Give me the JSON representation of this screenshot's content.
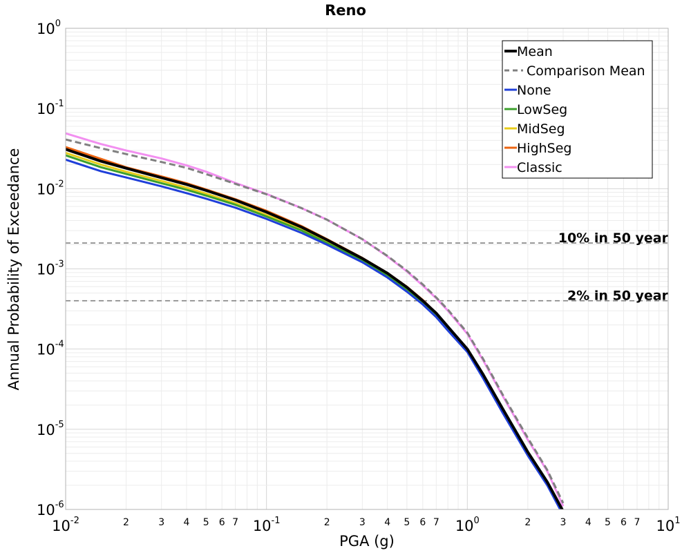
{
  "chart_data": {
    "type": "line",
    "title": "Reno",
    "xlabel": "PGA (g)",
    "ylabel": "Annual Probability of Exceedance",
    "xscale": "log",
    "yscale": "log",
    "xlim": [
      0.01,
      10
    ],
    "ylim": [
      1e-06,
      1
    ],
    "grid": true,
    "legend_position": "top-right",
    "x_major_ticks": [
      {
        "value": 0.01,
        "base": "10",
        "exp": "-2"
      },
      {
        "value": 0.1,
        "base": "10",
        "exp": "-1"
      },
      {
        "value": 1,
        "base": "10",
        "exp": "0"
      },
      {
        "value": 10,
        "base": "10",
        "exp": "1"
      }
    ],
    "x_minor_ticks": [
      {
        "value": 0.02,
        "label": "2"
      },
      {
        "value": 0.03,
        "label": "3"
      },
      {
        "value": 0.04,
        "label": "4"
      },
      {
        "value": 0.05,
        "label": "5"
      },
      {
        "value": 0.06,
        "label": "6"
      },
      {
        "value": 0.07,
        "label": "7"
      },
      {
        "value": 0.2,
        "label": "2"
      },
      {
        "value": 0.3,
        "label": "3"
      },
      {
        "value": 0.4,
        "label": "4"
      },
      {
        "value": 0.5,
        "label": "5"
      },
      {
        "value": 0.6,
        "label": "6"
      },
      {
        "value": 0.7,
        "label": "7"
      },
      {
        "value": 2,
        "label": "2"
      },
      {
        "value": 3,
        "label": "3"
      },
      {
        "value": 4,
        "label": "4"
      },
      {
        "value": 5,
        "label": "5"
      },
      {
        "value": 6,
        "label": "6"
      },
      {
        "value": 7,
        "label": "7"
      }
    ],
    "y_major_ticks": [
      {
        "value": 1,
        "base": "10",
        "exp": "0"
      },
      {
        "value": 0.1,
        "base": "10",
        "exp": "-1"
      },
      {
        "value": 0.01,
        "base": "10",
        "exp": "-2"
      },
      {
        "value": 0.001,
        "base": "10",
        "exp": "-3"
      },
      {
        "value": 0.0001,
        "base": "10",
        "exp": "-4"
      },
      {
        "value": 1e-05,
        "base": "10",
        "exp": "-5"
      },
      {
        "value": 1e-06,
        "base": "10",
        "exp": "-6"
      }
    ],
    "reference_lines": [
      {
        "label": "10% in 50 year",
        "y": 0.0021,
        "color": "#808080",
        "dash": "dashed"
      },
      {
        "label": "2% in 50 year",
        "y": 0.0004,
        "color": "#808080",
        "dash": "dashed"
      }
    ],
    "x": [
      0.01,
      0.015,
      0.02,
      0.03,
      0.04,
      0.05,
      0.07,
      0.1,
      0.15,
      0.2,
      0.3,
      0.4,
      0.5,
      0.6,
      0.7,
      0.8,
      1.0,
      1.2,
      1.5,
      2.0,
      2.5,
      3.0
    ],
    "series": [
      {
        "name": "Mean",
        "color": "#000000",
        "width": 4,
        "dash": "solid",
        "values": [
          0.031,
          0.022,
          0.018,
          0.0137,
          0.0113,
          0.0095,
          0.0072,
          0.0051,
          0.0033,
          0.0023,
          0.00135,
          0.00088,
          0.00059,
          0.0004,
          0.00028,
          0.00019,
          0.0001,
          4.8e-05,
          1.8e-05,
          5.2e-06,
          2.2e-06,
          9.5e-07
        ]
      },
      {
        "name": "Comparison Mean",
        "color": "#808080",
        "width": 3,
        "dash": "dashed",
        "values": [
          0.041,
          0.032,
          0.027,
          0.0215,
          0.0182,
          0.0152,
          0.0115,
          0.0085,
          0.0057,
          0.0041,
          0.00235,
          0.00145,
          0.00095,
          0.00064,
          0.00044,
          0.00031,
          0.00016,
          7.5e-05,
          2.7e-05,
          7.8e-06,
          3.1e-06,
          1.2e-06
        ]
      },
      {
        "name": "None",
        "color": "#1f3fd9",
        "width": 3,
        "dash": "solid",
        "values": [
          0.023,
          0.0165,
          0.0138,
          0.0107,
          0.0088,
          0.0075,
          0.0058,
          0.0042,
          0.0028,
          0.002,
          0.00121,
          0.00078,
          0.00052,
          0.00036,
          0.00025,
          0.00017,
          9.2e-05,
          4.3e-05,
          1.6e-05,
          4.7e-06,
          2e-06,
          8.5e-07
        ]
      },
      {
        "name": "LowSeg",
        "color": "#3ca02c",
        "width": 3,
        "dash": "solid",
        "values": [
          0.026,
          0.0185,
          0.0153,
          0.0117,
          0.0097,
          0.0082,
          0.0063,
          0.0045,
          0.003,
          0.0021,
          0.00127,
          0.00082,
          0.00055,
          0.00038,
          0.00026,
          0.00018,
          9.5e-05,
          4.5e-05,
          1.68e-05,
          4.9e-06,
          2.1e-06,
          8.8e-07
        ]
      },
      {
        "name": "MidSeg",
        "color": "#e8cc1a",
        "width": 3,
        "dash": "solid",
        "values": [
          0.028,
          0.02,
          0.0163,
          0.0125,
          0.0103,
          0.0087,
          0.0066,
          0.0047,
          0.0031,
          0.0022,
          0.0013,
          0.00084,
          0.00056,
          0.00039,
          0.00027,
          0.000185,
          9.7e-05,
          4.6e-05,
          1.72e-05,
          5e-06,
          2.1e-06,
          9e-07
        ]
      },
      {
        "name": "HighSeg",
        "color": "#ec6410",
        "width": 3,
        "dash": "solid",
        "values": [
          0.033,
          0.0235,
          0.0185,
          0.0142,
          0.0117,
          0.0098,
          0.0074,
          0.0053,
          0.0034,
          0.00235,
          0.00137,
          0.00089,
          0.0006,
          0.00041,
          0.00028,
          0.00019,
          0.0001,
          4.8e-05,
          1.8e-05,
          5.2e-06,
          2.2e-06,
          9.5e-07
        ]
      },
      {
        "name": "Classic",
        "color": "#f28ff0",
        "width": 3,
        "dash": "solid",
        "values": [
          0.049,
          0.036,
          0.03,
          0.0238,
          0.0195,
          0.0163,
          0.0118,
          0.0086,
          0.0057,
          0.0041,
          0.00235,
          0.00143,
          0.00093,
          0.00062,
          0.00043,
          0.0003,
          0.000155,
          7.2e-05,
          2.6e-05,
          7.4e-06,
          3e-06,
          1.1e-06
        ]
      }
    ]
  }
}
